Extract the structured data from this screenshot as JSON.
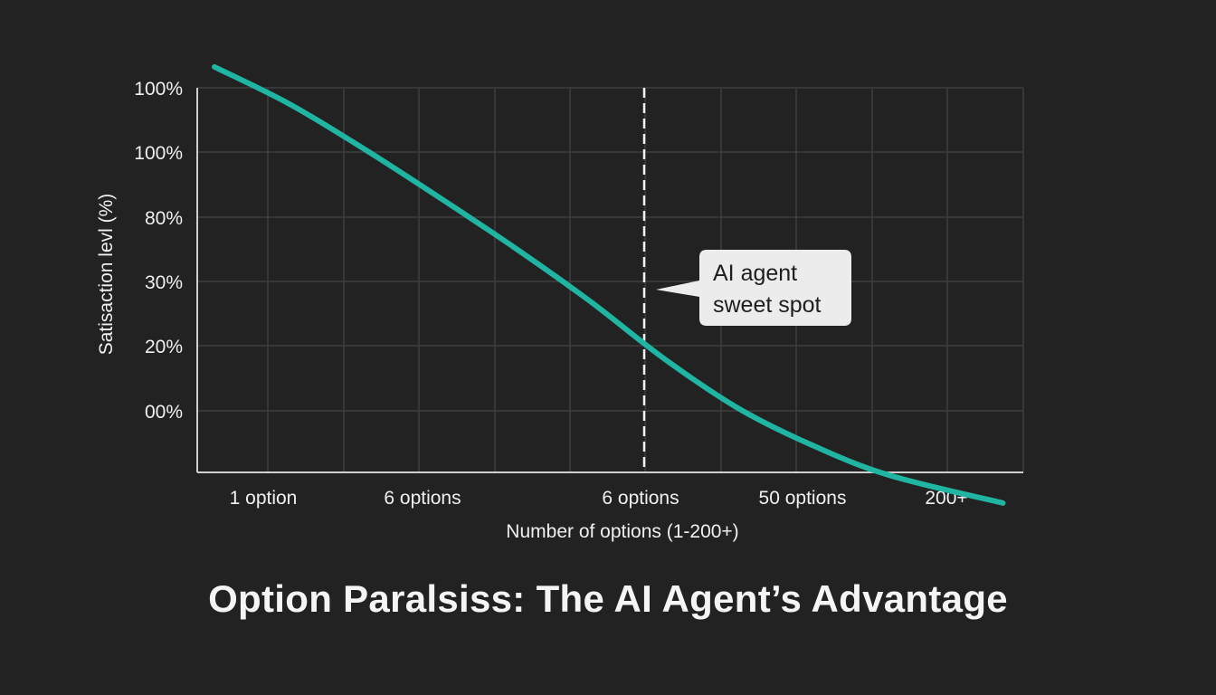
{
  "chart_data": {
    "type": "line",
    "title": "Option Paralsiss: The AI Agent’s Advantage",
    "xlabel": "Number of options (1-200+)",
    "ylabel": "Satisaction levl (%)",
    "x_tick_labels": [
      "1 option",
      "6 options",
      "6 options",
      "50 options",
      "200+"
    ],
    "y_tick_labels": [
      "100%",
      "100%",
      "80%",
      "30%",
      "20%",
      "00%"
    ],
    "grid": true,
    "series": [
      {
        "color": "#1fb5a2",
        "points": [
          {
            "x": 0.0,
            "y": 97.5
          },
          {
            "x": 1.0,
            "y": 86.0
          },
          {
            "x": 2.0,
            "y": 72.0
          },
          {
            "x": 3.0,
            "y": 57.0
          },
          {
            "x": 4.0,
            "y": 41.5
          },
          {
            "x": 5.0,
            "y": 25.0
          },
          {
            "x": 6.0,
            "y": 7.0
          },
          {
            "x": 7.0,
            "y": -8.5
          },
          {
            "x": 8.0,
            "y": -20.0
          },
          {
            "x": 9.0,
            "y": -29.0
          },
          {
            "x": 10.5,
            "y": -37.5
          }
        ]
      }
    ],
    "annotation": {
      "text_lines": [
        "AI agent",
        "sweet spot"
      ],
      "x": 6.0
    }
  }
}
